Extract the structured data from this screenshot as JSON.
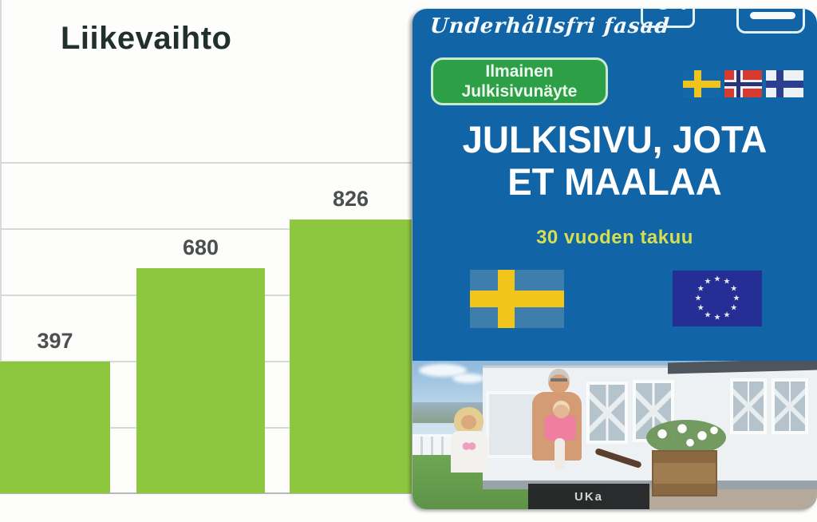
{
  "chart": {
    "title": "Liikevaihto"
  },
  "chart_data": {
    "type": "bar",
    "title": "Liikevaihto",
    "values": [
      397,
      680,
      826
    ],
    "value_labels": [
      "397",
      "680",
      "826"
    ],
    "categories": [
      "",
      "",
      ""
    ],
    "x_labels_visible": false,
    "ylim": [
      0,
      1000
    ],
    "gridline_interval": 200,
    "grid": true,
    "bar_color": "#8dc63f",
    "label_color": "#4b4f4e",
    "title_color": "#20302d",
    "notes": "leftmost bar and rightmost bar are cropped by image edges; no axis tick labels visible"
  },
  "ad": {
    "accent_blue": "#1164a6",
    "script_title": "Underhållsfri fasad",
    "button": {
      "line1": "Ilmainen",
      "line2": "Julkisivunäyte",
      "bg": "#2da047"
    },
    "headline_line1": "JULKISIVU, JOTA",
    "headline_line2": "ET MAALAA",
    "warranty": "30 vuoden takuu",
    "warranty_color": "#d6de52",
    "icons": [
      "search-icon",
      "tab-bar-icon"
    ],
    "mini_flags": [
      "sweden",
      "norway",
      "finland"
    ],
    "large_flags": [
      "sweden",
      "eu"
    ],
    "photo_sign_text": "UKa",
    "eu_star": "★"
  }
}
